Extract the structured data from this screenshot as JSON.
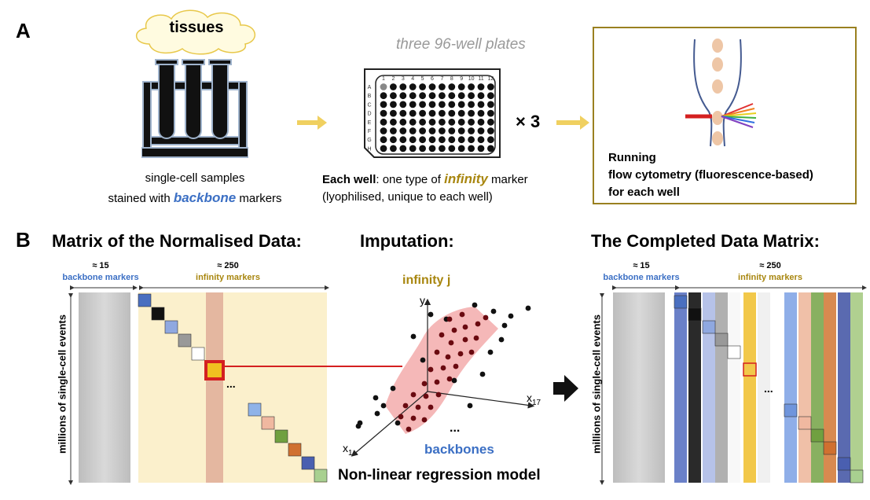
{
  "panelA": {
    "letter": "A",
    "cloud_label": "tissues",
    "samples_line1": "single-cell samples",
    "samples_line2_pre": "stained with ",
    "samples_line2_marker": "backbone",
    "samples_line2_post": " markers",
    "plates_title": "three 96-well plates",
    "plate_columns": [
      "1",
      "2",
      "3",
      "4",
      "5",
      "6",
      "7",
      "8",
      "9",
      "10",
      "11",
      "12"
    ],
    "plate_rows": [
      "A",
      "B",
      "C",
      "D",
      "E",
      "F",
      "G",
      "H"
    ],
    "multiplier": "× 3",
    "well_line1_bold": "Each well",
    "well_line1_mid": ": one type of ",
    "well_line1_marker": "infinity",
    "well_line1_post": " marker",
    "well_line2": "(lyophilised, unique to each well)",
    "cytometry_line1": "Running",
    "cytometry_line2": "flow cytometry (fluorescence-based)",
    "cytometry_line3": "for each well"
  },
  "panelB": {
    "letter": "B",
    "left_title": "Matrix of the Normalised Data:",
    "middle_title": "Imputation:",
    "right_title": "The Completed Data Matrix:",
    "backbone_count": "≈ 15",
    "backbone_label": "backbone markers",
    "infinity_count": "≈ 250",
    "infinity_label": "infinity markers",
    "rows_label": "millions of single-cell events",
    "ellipsis": "...",
    "infinity_j": "infinity j",
    "axis_y": "y",
    "axis_x17": "x",
    "axis_x17_sub": "17",
    "axis_x1": "x",
    "axis_x1_sub": "1",
    "backbones_label": "backbones",
    "model_label": "Non-linear regression model"
  },
  "colors": {
    "backbone_blue": "#3b6fc4",
    "infinity_gold": "#a8860f",
    "arrow_yellow": "#f0d060",
    "infinity_bg": "#fbf0cc",
    "highlight_red": "#d42020"
  }
}
